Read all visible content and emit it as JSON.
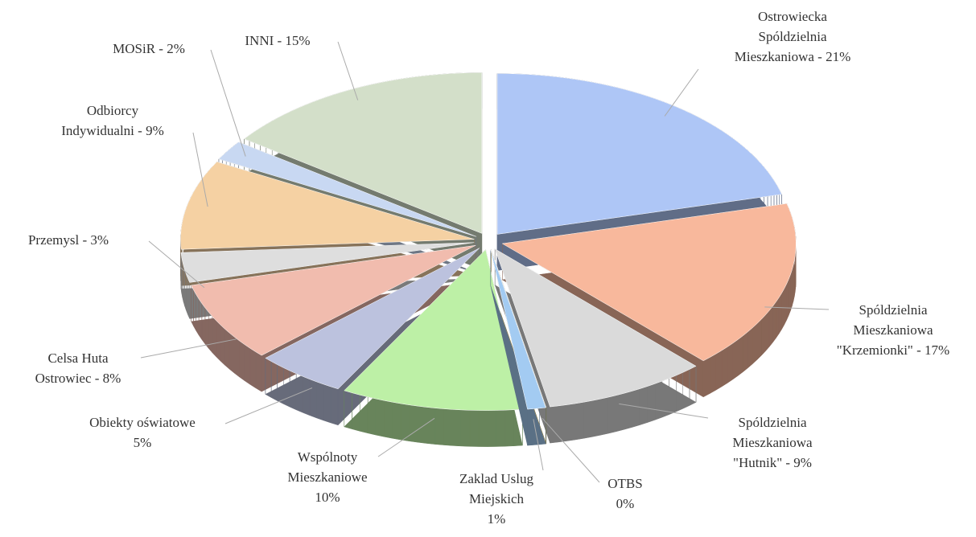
{
  "chart_data": {
    "type": "pie3d",
    "labels": [
      [
        "Ostrowiecka",
        "Spóldzielnia",
        "Mieszkaniowa - 21%"
      ],
      [
        "Spóldzielnia",
        "Mieszkaniowa",
        "\"Krzemionki\" - 17%"
      ],
      [
        "Spóldzielnia",
        "Mieszkaniowa",
        "\"Hutnik\" - 9%"
      ],
      [
        "OTBS",
        "0%"
      ],
      [
        "Zaklad Uslug",
        "Miejskich",
        "1%"
      ],
      [
        "Wspólnoty",
        "Mieszkaniowe",
        "10%"
      ],
      [
        "Obiekty oświatowe",
        "5%"
      ],
      [
        "Celsa Huta",
        "Ostrowiec - 8%"
      ],
      [
        "Przemysl - 3%"
      ],
      [
        "Odbiorcy",
        "Indywidualni - 9%"
      ],
      [
        "MOSiR - 2%"
      ],
      [
        "INNI - 15%"
      ]
    ],
    "values": [
      21,
      17,
      9,
      0,
      1,
      10,
      5,
      8,
      3,
      9,
      2,
      15
    ],
    "colors": [
      "#aec6f6",
      "#f8b89c",
      "#dadada",
      "#f4d564",
      "#a3cbf2",
      "#bdf0a6",
      "#bcc2de",
      "#f1bcae",
      "#dedede",
      "#f5d1a3",
      "#c8d8f2",
      "#d3dfc9"
    ]
  }
}
